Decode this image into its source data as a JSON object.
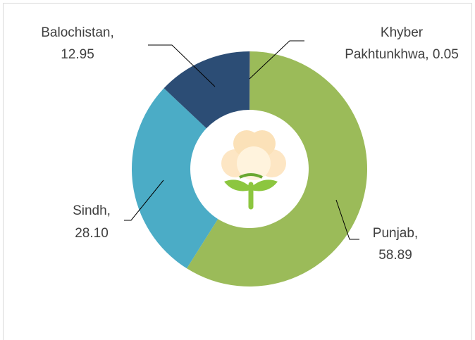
{
  "chart_data": {
    "type": "donut",
    "labels": [
      [
        "Khyber",
        "Pakhtunkhwa, 0.05"
      ],
      [
        "Punjab,",
        "58.89"
      ],
      [
        "Sindh,",
        "28.10"
      ],
      [
        "Balochistan,",
        "12.95"
      ]
    ],
    "values": [
      0.05,
      58.89,
      28.1,
      12.95
    ],
    "colors": [
      "#8064a2",
      "#9bbb59",
      "#4bacc6",
      "#2c4d75"
    ]
  }
}
